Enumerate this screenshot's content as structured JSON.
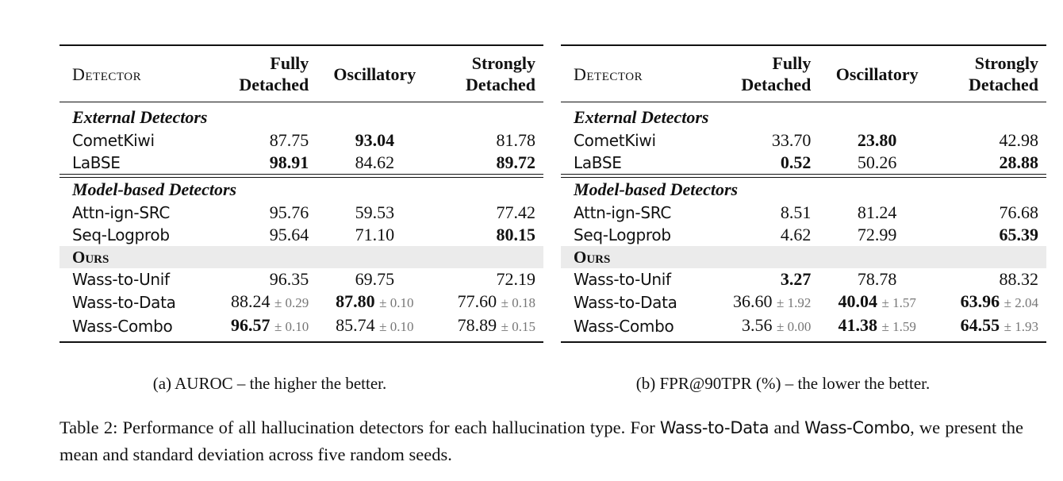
{
  "columns": {
    "detector": "Detector",
    "fully_detached": [
      "Fully",
      "Detached"
    ],
    "oscillatory": "Oscillatory",
    "strongly_detached": [
      "Strongly",
      "Detached"
    ]
  },
  "groups": {
    "external": "External Detectors",
    "model_based": "Model-based Detectors",
    "ours": "Ours"
  },
  "table_a": {
    "caption": "(a) AUROC – the higher the better.",
    "external": [
      {
        "name": "CometKiwi",
        "fd": "87.75",
        "osc": "93.04",
        "sd": "81.78"
      },
      {
        "name": "LaBSE",
        "fd": "98.91",
        "osc": "84.62",
        "sd": "89.72"
      }
    ],
    "model_based": [
      {
        "name": "Attn-ign-SRC",
        "fd": "95.76",
        "osc": "59.53",
        "sd": "77.42"
      },
      {
        "name": "Seq-Logprob",
        "fd": "95.64",
        "osc": "71.10",
        "sd": "80.15"
      }
    ],
    "ours": [
      {
        "name": "Wass-to-Unif",
        "fd": "96.35",
        "osc": "69.75",
        "sd": "72.19"
      },
      {
        "name": "Wass-to-Data",
        "fd": "88.24",
        "fd_std": "± 0.29",
        "osc": "87.80",
        "osc_std": "± 0.10",
        "sd": "77.60",
        "sd_std": "± 0.18"
      },
      {
        "name": "Wass-Combo",
        "fd": "96.57",
        "fd_std": "± 0.10",
        "osc": "85.74",
        "osc_std": "± 0.10",
        "sd": "78.89",
        "sd_std": "± 0.15"
      }
    ]
  },
  "table_b": {
    "caption": "(b) FPR@90TPR (%) – the lower the better.",
    "external": [
      {
        "name": "CometKiwi",
        "fd": "33.70",
        "osc": "23.80",
        "sd": "42.98"
      },
      {
        "name": "LaBSE",
        "fd": "0.52",
        "osc": "50.26",
        "sd": "28.88"
      }
    ],
    "model_based": [
      {
        "name": "Attn-ign-SRC",
        "fd": "8.51",
        "osc": "81.24",
        "sd": "76.68"
      },
      {
        "name": "Seq-Logprob",
        "fd": "4.62",
        "osc": "72.99",
        "sd": "65.39"
      }
    ],
    "ours": [
      {
        "name": "Wass-to-Unif",
        "fd": "3.27",
        "osc": "78.78",
        "sd": "88.32"
      },
      {
        "name": "Wass-to-Data",
        "fd": "36.60",
        "fd_std": "± 1.92",
        "osc": "40.04",
        "osc_std": "± 1.57",
        "sd": "63.96",
        "sd_std": "± 2.04"
      },
      {
        "name": "Wass-Combo",
        "fd": "3.56",
        "fd_std": "± 0.00",
        "osc": "41.38",
        "osc_std": "± 1.59",
        "sd": "64.55",
        "sd_std": "± 1.93"
      }
    ]
  },
  "table_caption": {
    "part1": "Table 2: Performance of all hallucination detectors for each hallucination type. For ",
    "wass_to_data": "Wass-to-Data",
    "and": " and ",
    "wass_combo": "Wass-Combo",
    "part2": ", we present the mean and standard deviation across five random seeds."
  }
}
